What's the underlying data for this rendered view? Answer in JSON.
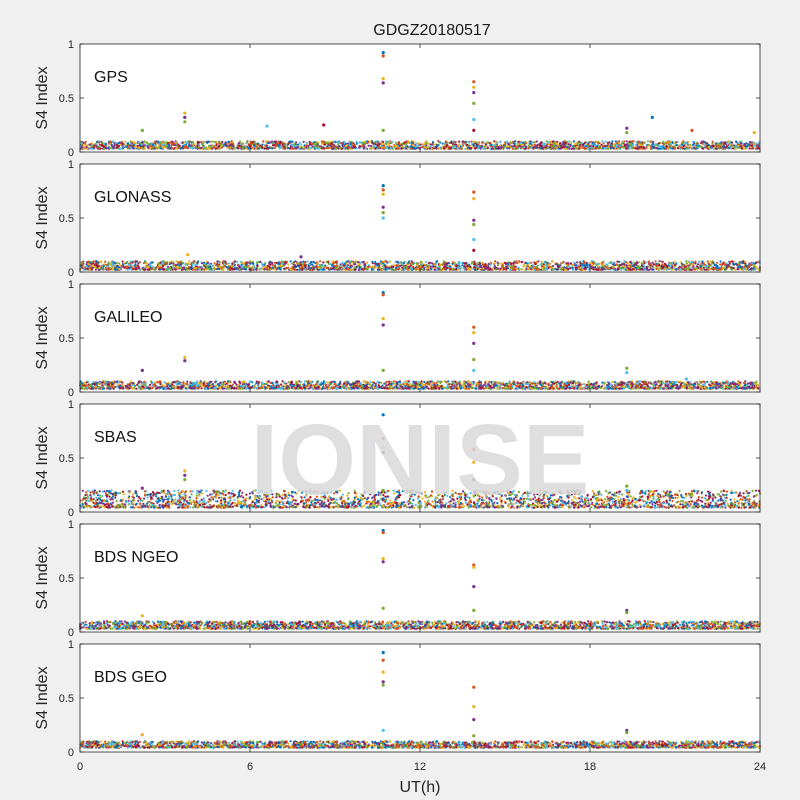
{
  "title": "GDGZ20180517",
  "watermark": "IONISE",
  "chart_data": {
    "type": "scatter",
    "xlabel": "UT(h)",
    "ylabel": "S4 Index",
    "xlim": [
      0,
      24
    ],
    "ylim": [
      0,
      1
    ],
    "xticks": [
      0,
      6,
      12,
      18,
      24
    ],
    "yticks": [
      0,
      0.5,
      1
    ],
    "ytick_labels": [
      "0",
      "0.5",
      "1"
    ],
    "colors": [
      "#0072BD",
      "#D95319",
      "#EDB120",
      "#7E2F8E",
      "#77AC30",
      "#4DBEEE",
      "#A2142F"
    ],
    "panels": [
      {
        "name": "GPS",
        "baseline_range": [
          0.03,
          0.1
        ],
        "spikes": [
          {
            "x": 10.7,
            "values": [
              0.92,
              0.89,
              0.68,
              0.64,
              0.2
            ]
          },
          {
            "x": 13.9,
            "values": [
              0.65,
              0.6,
              0.55,
              0.45,
              0.3,
              0.2
            ]
          },
          {
            "x": 3.7,
            "values": [
              0.36,
              0.32,
              0.28
            ]
          },
          {
            "x": 19.3,
            "values": [
              0.22,
              0.18
            ]
          },
          {
            "x": 2.2,
            "values": [
              0.2
            ]
          },
          {
            "x": 6.6,
            "values": [
              0.24
            ]
          },
          {
            "x": 8.6,
            "values": [
              0.25
            ]
          },
          {
            "x": 20.2,
            "values": [
              0.32
            ]
          },
          {
            "x": 21.6,
            "values": [
              0.2
            ]
          },
          {
            "x": 23.8,
            "values": [
              0.18
            ]
          }
        ]
      },
      {
        "name": "GLONASS",
        "baseline_range": [
          0.02,
          0.1
        ],
        "spikes": [
          {
            "x": 10.7,
            "values": [
              0.8,
              0.76,
              0.72,
              0.6,
              0.55,
              0.5
            ]
          },
          {
            "x": 13.9,
            "values": [
              0.74,
              0.68,
              0.48,
              0.44,
              0.3,
              0.2
            ]
          },
          {
            "x": 3.8,
            "values": [
              0.16
            ]
          },
          {
            "x": 7.8,
            "values": [
              0.14
            ]
          }
        ]
      },
      {
        "name": "GALILEO",
        "baseline_range": [
          0.03,
          0.1
        ],
        "spikes": [
          {
            "x": 10.7,
            "values": [
              0.92,
              0.9,
              0.68,
              0.62,
              0.2
            ]
          },
          {
            "x": 13.9,
            "values": [
              0.6,
              0.55,
              0.45,
              0.3,
              0.2
            ]
          },
          {
            "x": 3.7,
            "values": [
              0.32,
              0.29
            ]
          },
          {
            "x": 2.2,
            "values": [
              0.2
            ]
          },
          {
            "x": 19.3,
            "values": [
              0.22,
              0.18
            ]
          },
          {
            "x": 21.4,
            "values": [
              0.12
            ]
          }
        ]
      },
      {
        "name": "SBAS",
        "baseline_range": [
          0.04,
          0.2
        ],
        "spikes": [
          {
            "x": 10.7,
            "values": [
              0.9,
              0.68,
              0.6,
              0.55,
              0.2
            ]
          },
          {
            "x": 13.9,
            "values": [
              0.58,
              0.46,
              0.3
            ]
          },
          {
            "x": 3.7,
            "values": [
              0.38,
              0.34,
              0.3
            ]
          },
          {
            "x": 2.2,
            "values": [
              0.22
            ]
          },
          {
            "x": 19.3,
            "values": [
              0.24,
              0.2
            ]
          }
        ]
      },
      {
        "name": "BDS NGEO",
        "baseline_range": [
          0.03,
          0.1
        ],
        "spikes": [
          {
            "x": 10.7,
            "values": [
              0.94,
              0.92,
              0.68,
              0.65,
              0.22
            ]
          },
          {
            "x": 13.9,
            "values": [
              0.62,
              0.6,
              0.42,
              0.2
            ]
          },
          {
            "x": 2.2,
            "values": [
              0.15
            ]
          },
          {
            "x": 19.3,
            "values": [
              0.2,
              0.18
            ]
          }
        ]
      },
      {
        "name": "BDS GEO",
        "baseline_range": [
          0.04,
          0.1
        ],
        "spikes": [
          {
            "x": 10.7,
            "values": [
              0.92,
              0.85,
              0.74,
              0.65,
              0.62,
              0.2
            ]
          },
          {
            "x": 13.9,
            "values": [
              0.6,
              0.42,
              0.3,
              0.15
            ]
          },
          {
            "x": 2.2,
            "values": [
              0.16
            ]
          },
          {
            "x": 19.3,
            "values": [
              0.2,
              0.18
            ]
          }
        ]
      }
    ]
  }
}
